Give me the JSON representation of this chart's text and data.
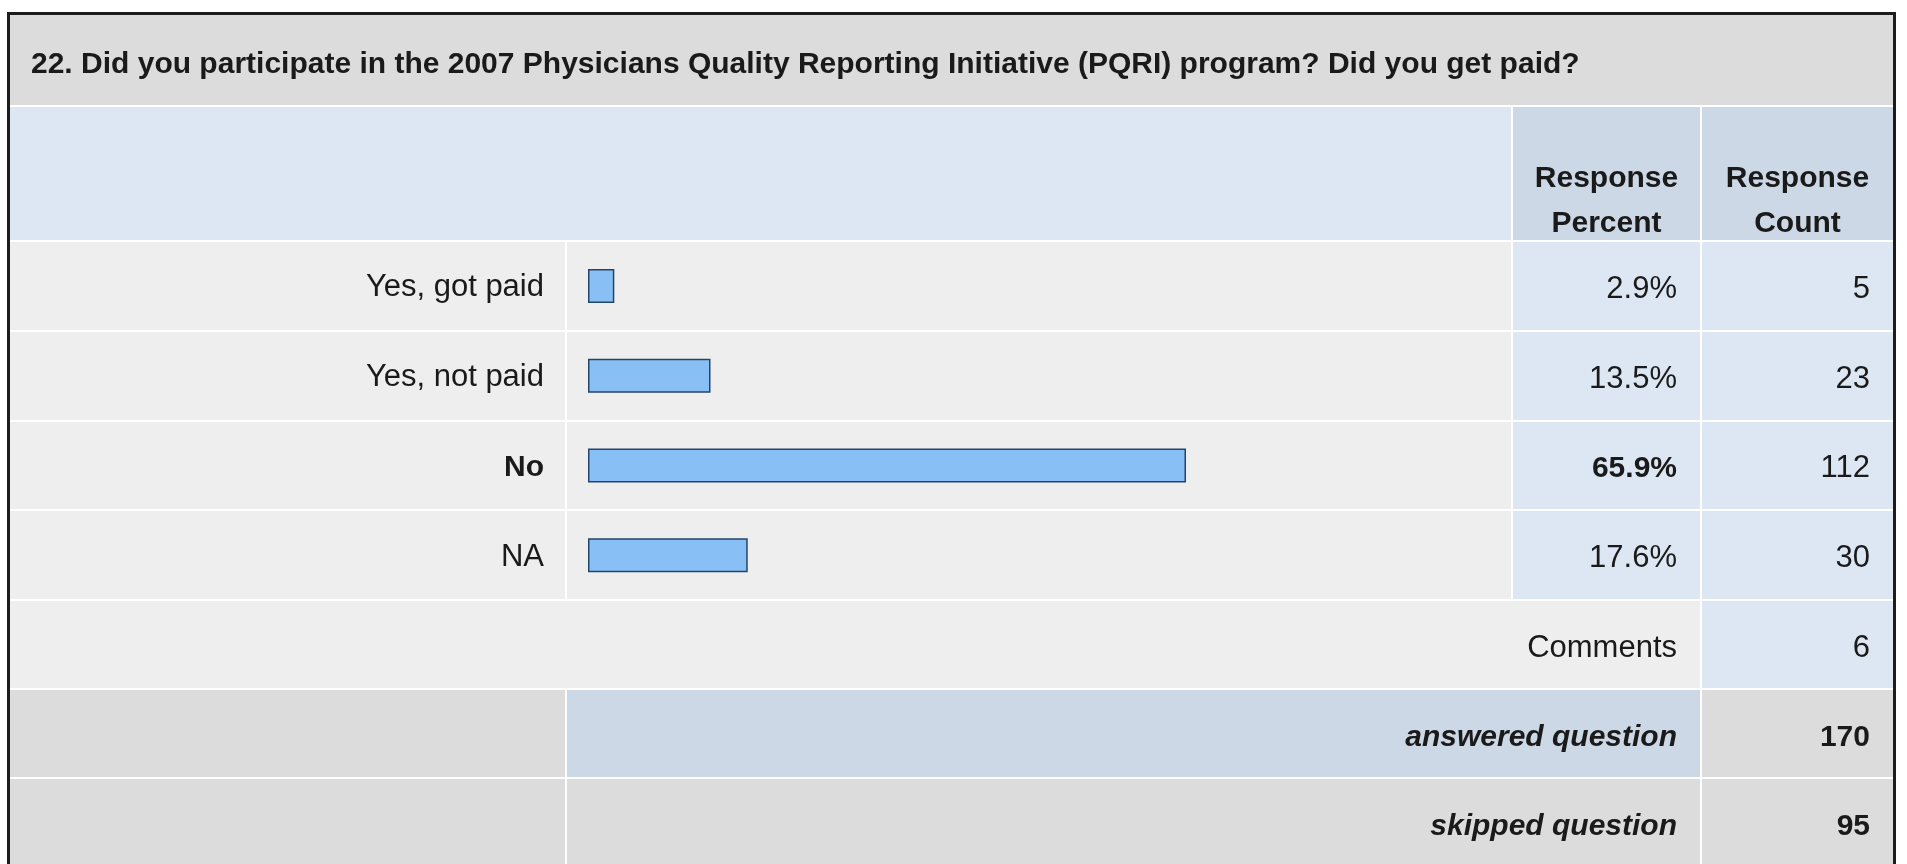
{
  "chart_data": {
    "type": "bar",
    "orientation": "horizontal",
    "title": "22. Did you participate in the 2007 Physicians Quality Reporting Initiative (PQRI) program? Did you get paid?",
    "categories": [
      "Yes, got paid",
      "Yes, not paid",
      "No",
      "NA"
    ],
    "values": [
      2.9,
      13.5,
      65.9,
      17.6
    ],
    "value_labels": [
      "2.9%",
      "13.5%",
      "65.9%",
      "17.6%"
    ],
    "color": "#88c0f5",
    "tick_labels": "y",
    "annotations": [
      "Response Percent",
      "Response Count",
      "5",
      "23",
      "112",
      "30",
      "Comments",
      "6",
      "answered question",
      "170",
      "skipped question",
      "95"
    ]
  }
}
